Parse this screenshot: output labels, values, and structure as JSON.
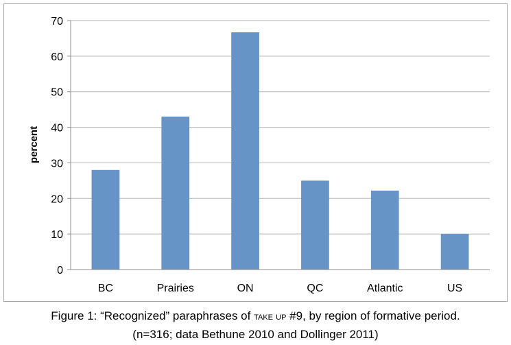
{
  "chart_data": {
    "type": "bar",
    "categories": [
      "BC",
      "Prairies",
      "ON",
      "QC",
      "Atlantic",
      "US"
    ],
    "values": [
      28,
      43,
      66.7,
      25,
      22.2,
      10
    ],
    "ylabel": "percent",
    "xlabel": "",
    "ylim": [
      0,
      70
    ],
    "yticks": [
      0,
      10,
      20,
      30,
      40,
      50,
      60,
      70
    ],
    "grid": true,
    "legend": "none",
    "bar_color": "#6794c7",
    "grid_color": "#b3b3b3"
  },
  "caption": {
    "line1_prefix": "Figure 1: “Recognized” paraphrases of ",
    "line1_smallcaps": "take up",
    "line1_suffix": " #9, by region of formative period.",
    "line2": "(n=316; data Bethune 2010 and Dollinger 2011)"
  }
}
